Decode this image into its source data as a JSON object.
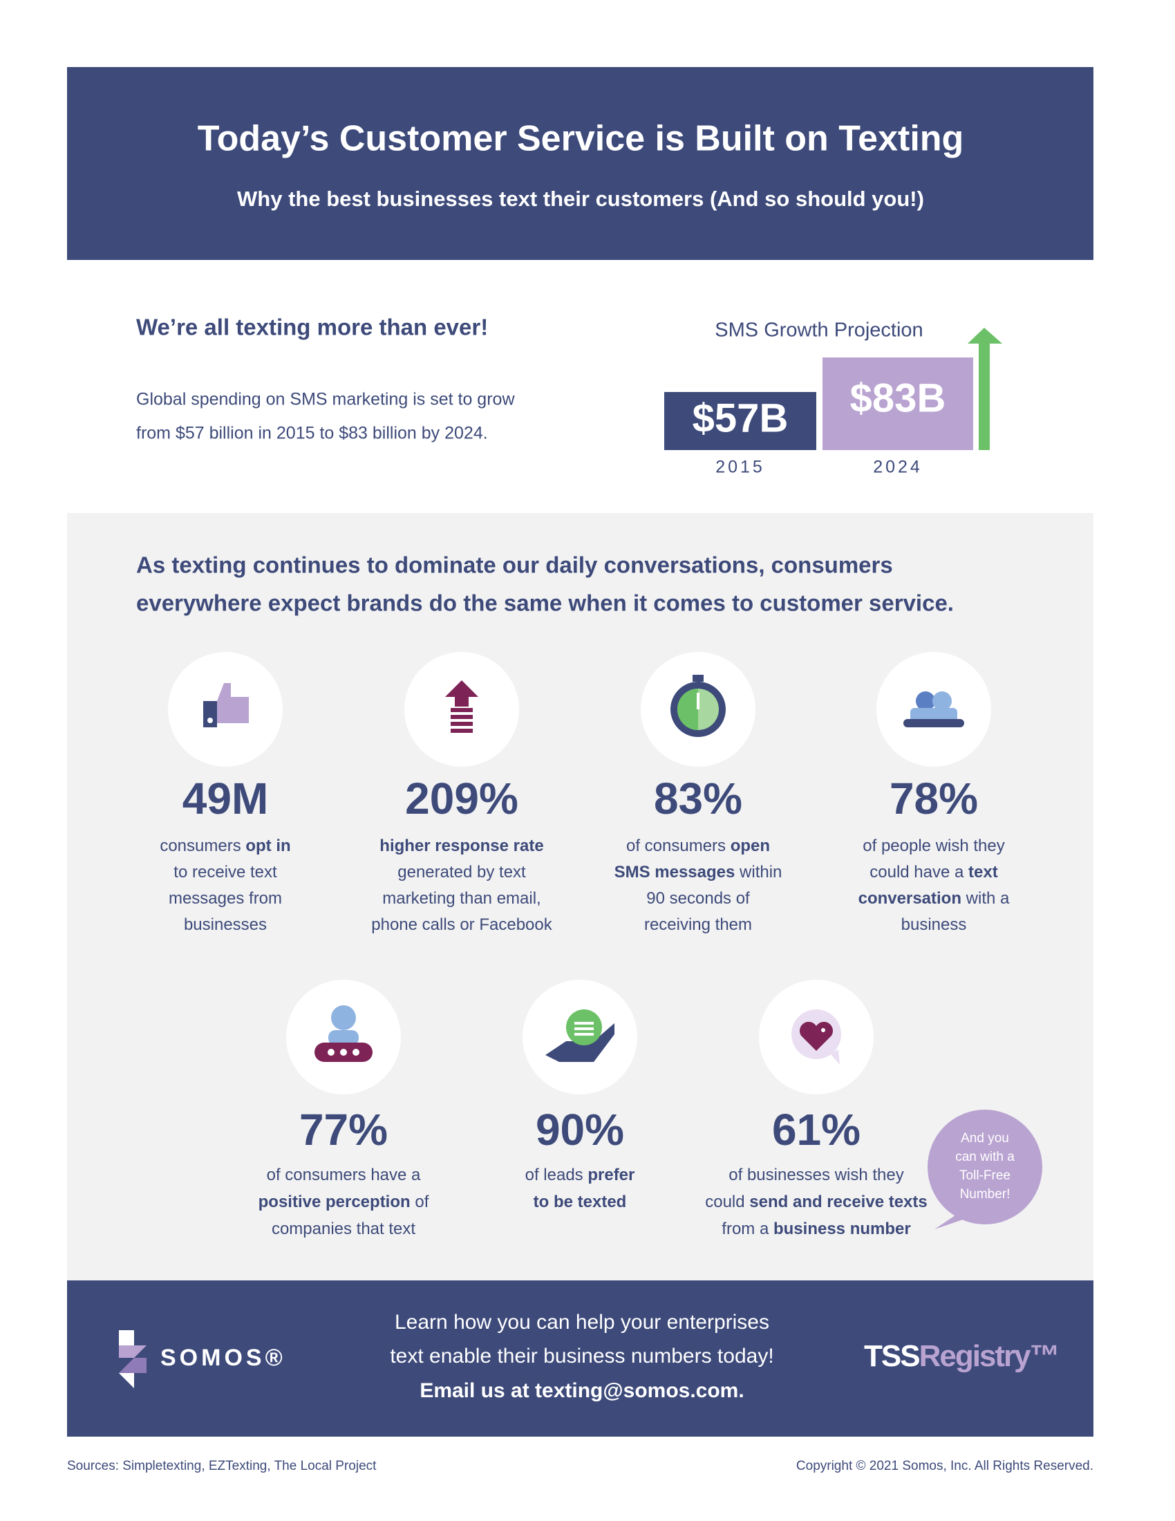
{
  "header": {
    "title": "Today’s Customer Service is Built on Texting",
    "subtitle": "Why the best businesses text their customers (And so should you!)"
  },
  "growth": {
    "heading": "We’re all texting more than ever!",
    "body": [
      "Global spending on SMS marketing is set to grow",
      "from $57 billion in 2015 to $83 billion by 2024."
    ],
    "chart": {
      "title": "SMS Growth Projection",
      "bars": [
        {
          "label": "$57B",
          "year": "2015"
        },
        {
          "label": "$83B",
          "year": "2024"
        }
      ]
    }
  },
  "stats": {
    "intro": [
      "As texting continues to dominate our daily conversations, consumers",
      "everywhere expect brands do the same when it comes to customer service."
    ],
    "items": [
      {
        "value": "49M",
        "lines": [
          [
            "consumers ",
            {
              "bold": "opt in"
            }
          ],
          [
            "to receive text"
          ],
          [
            "messages from"
          ],
          [
            "businesses"
          ]
        ]
      },
      {
        "value": "209%",
        "lines": [
          [
            {
              "bold": "higher response rate"
            }
          ],
          [
            "generated by text"
          ],
          [
            "marketing than email,"
          ],
          [
            "phone calls or Facebook"
          ]
        ]
      },
      {
        "value": "83%",
        "lines": [
          [
            "of consumers ",
            {
              "bold": "open"
            }
          ],
          [
            {
              "bold": "SMS messages"
            },
            " within"
          ],
          [
            "90 seconds of"
          ],
          [
            "receiving them"
          ]
        ]
      },
      {
        "value": "78%",
        "lines": [
          [
            "of people wish they"
          ],
          [
            "could have a ",
            {
              "bold": "text"
            }
          ],
          [
            {
              "bold": "conversation"
            },
            " with a"
          ],
          [
            "business"
          ]
        ]
      },
      {
        "value": "77%",
        "lines": [
          [
            "of consumers have a"
          ],
          [
            {
              "bold": "positive perception"
            },
            " of"
          ],
          [
            "companies that text"
          ]
        ]
      },
      {
        "value": "90%",
        "lines": [
          [
            "of leads ",
            {
              "bold": "prefer"
            }
          ],
          [
            {
              "bold": "to be texted"
            }
          ]
        ]
      },
      {
        "value": "61%",
        "lines": [
          [
            "of businesses wish they"
          ],
          [
            "could ",
            {
              "bold": "send and receive texts"
            }
          ],
          [
            "from a ",
            {
              "bold": "business number"
            }
          ]
        ]
      }
    ]
  },
  "callout": [
    "And you",
    "can with a",
    "Toll-Free",
    "Number!"
  ],
  "footer": {
    "cta": [
      "Learn how you can help your enterprises",
      "text enable their business numbers today!",
      "Email us at texting@somos.com."
    ],
    "brand": "SOMOS®",
    "partner": [
      "TSS",
      "Registry™"
    ]
  },
  "sources": "Sources: Simpletexting, EZTexting, The Local Project",
  "copyright": "Copyright © 2021 Somos, Inc. All Rights Reserved."
}
